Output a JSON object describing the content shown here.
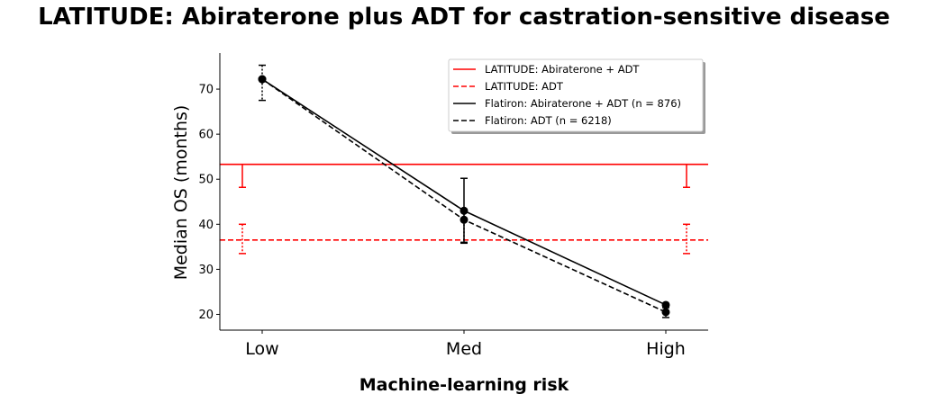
{
  "chart_data": {
    "type": "line",
    "title": "LATITUDE: Abiraterone plus ADT for castration-sensitive disease",
    "xlabel": "Machine-learning risk",
    "ylabel": "Median OS (months)",
    "categories": [
      "Low",
      "Med",
      "High"
    ],
    "ylim": [
      16.5,
      78
    ],
    "yticks": [
      20,
      30,
      40,
      50,
      60,
      70
    ],
    "grid": false,
    "legend_position": "top-right",
    "reference_lines": [
      {
        "name": "LATITUDE: Abiraterone + ADT",
        "value": 53.3,
        "ci": [
          48.2,
          53.3
        ],
        "color": "#ff0000",
        "style": "solid"
      },
      {
        "name": "LATITUDE: ADT",
        "value": 36.5,
        "ci": [
          33.5,
          40.0
        ],
        "color": "#ff0000",
        "style": "dashed"
      }
    ],
    "series": [
      {
        "name": "Flatiron: Abiraterone + ADT (n = 876)",
        "color": "#000000",
        "style": "solid",
        "values": [
          72.2,
          43.0,
          22.1
        ],
        "ci_lower": [
          72.2,
          36.0,
          22.1
        ],
        "ci_upper": [
          72.2,
          50.2,
          22.1
        ]
      },
      {
        "name": "Flatiron: ADT (n = 6218)",
        "color": "#000000",
        "style": "dashed",
        "values": [
          72.2,
          41.0,
          20.5
        ],
        "ci_lower": [
          67.5,
          35.8,
          19.3
        ],
        "ci_upper": [
          75.3,
          43.2,
          21.5
        ]
      }
    ]
  }
}
